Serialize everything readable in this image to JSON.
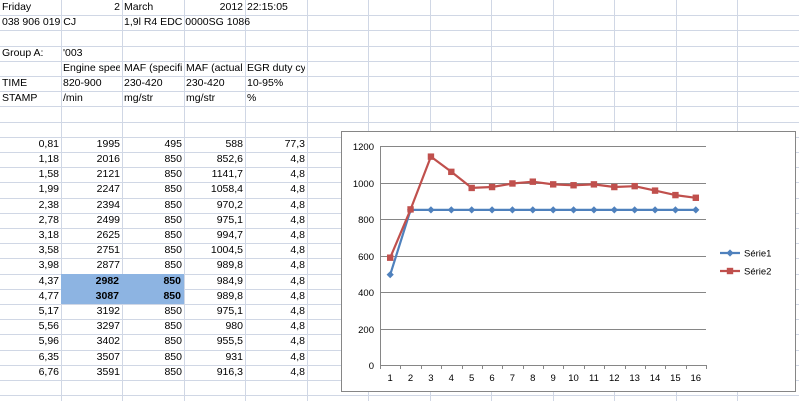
{
  "header": {
    "day": "Friday",
    "date_day": "2",
    "month": "March",
    "year": "2012",
    "time": "22:15:05",
    "part_no": "038 906 019 CJ",
    "engine": "1,9l R4 EDC 0000SG  1086"
  },
  "group": {
    "label": "Group A:",
    "value": "'003"
  },
  "columns": {
    "h1": [
      "",
      "Engine speed",
      "MAF (specified)",
      "MAF (actual)",
      "EGR duty cycle"
    ],
    "time_label": "TIME",
    "ranges": [
      "820-900",
      "230-420",
      "230-420",
      "10-95%"
    ],
    "stamp_label": "STAMP",
    "units": [
      "/min",
      "mg/str",
      "mg/str",
      "%"
    ]
  },
  "rows": [
    [
      "0,81",
      "1995",
      "495",
      "588",
      "77,3"
    ],
    [
      "1,18",
      "2016",
      "850",
      "852,6",
      "4,8"
    ],
    [
      "1,58",
      "2121",
      "850",
      "1141,7",
      "4,8"
    ],
    [
      "1,99",
      "2247",
      "850",
      "1058,4",
      "4,8"
    ],
    [
      "2,38",
      "2394",
      "850",
      "970,2",
      "4,8"
    ],
    [
      "2,78",
      "2499",
      "850",
      "975,1",
      "4,8"
    ],
    [
      "3,18",
      "2625",
      "850",
      "994,7",
      "4,8"
    ],
    [
      "3,58",
      "2751",
      "850",
      "1004,5",
      "4,8"
    ],
    [
      "3,98",
      "2877",
      "850",
      "989,8",
      "4,8"
    ],
    [
      "4,37",
      "2982",
      "850",
      "984,9",
      "4,8"
    ],
    [
      "4,77",
      "3087",
      "850",
      "989,8",
      "4,8"
    ],
    [
      "5,17",
      "3192",
      "850",
      "975,1",
      "4,8"
    ],
    [
      "5,56",
      "3297",
      "850",
      "980",
      "4,8"
    ],
    [
      "5,96",
      "3402",
      "850",
      "955,5",
      "4,8"
    ],
    [
      "6,35",
      "3507",
      "850",
      "931",
      "4,8"
    ],
    [
      "6,76",
      "3591",
      "850",
      "916,3",
      "4,8"
    ]
  ],
  "selected_rows": [
    9,
    10
  ],
  "colors": {
    "gridline": "#d0d7e5",
    "selection": "#8db4e2",
    "serie1": "#4f81bd",
    "serie2": "#c0504d"
  },
  "chart_data": {
    "type": "line",
    "x": [
      1,
      2,
      3,
      4,
      5,
      6,
      7,
      8,
      9,
      10,
      11,
      12,
      13,
      14,
      15,
      16
    ],
    "series": [
      {
        "name": "Série1",
        "values": [
          495,
          850,
          850,
          850,
          850,
          850,
          850,
          850,
          850,
          850,
          850,
          850,
          850,
          850,
          850,
          850
        ],
        "color": "#4f81bd",
        "marker": "diamond"
      },
      {
        "name": "Série2",
        "values": [
          588,
          852.6,
          1141.7,
          1058.4,
          970.2,
          975.1,
          994.7,
          1004.5,
          989.8,
          984.9,
          989.8,
          975.1,
          980,
          955.5,
          931,
          916.3
        ],
        "color": "#c0504d",
        "marker": "square"
      }
    ],
    "y_ticks": [
      "0",
      "200",
      "400",
      "600",
      "800",
      "1000",
      "1200"
    ],
    "x_ticks": [
      "1",
      "2",
      "3",
      "4",
      "5",
      "6",
      "7",
      "8",
      "9",
      "10",
      "11",
      "12",
      "13",
      "14",
      "15",
      "16"
    ],
    "ylim": [
      0,
      1200
    ],
    "grid": true,
    "legend_position": "right"
  }
}
